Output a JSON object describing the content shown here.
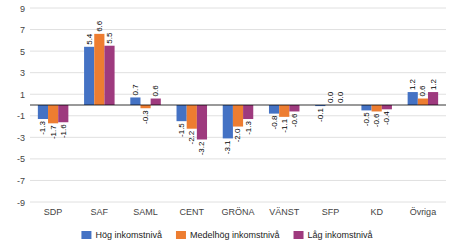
{
  "chart_data": {
    "type": "bar",
    "categories": [
      "SDP",
      "SAF",
      "SAML",
      "CENT",
      "GRÖNA",
      "VÄNST",
      "SFP",
      "KD",
      "Övriga"
    ],
    "series": [
      {
        "name": "Hög inkomstnivå",
        "color": "#4472c4",
        "values": [
          -1.3,
          5.4,
          0.7,
          -1.5,
          -3.1,
          -0.8,
          -0.1,
          -0.5,
          1.2
        ]
      },
      {
        "name": "Medelhög inkomstnivå",
        "color": "#ed7d31",
        "values": [
          -1.7,
          6.6,
          -0.3,
          -2.2,
          -2.0,
          -1.1,
          -0.0,
          -0.6,
          0.6
        ]
      },
      {
        "name": "Låg inkomstnivå",
        "color": "#9e3a7e",
        "values": [
          -1.6,
          5.5,
          0.6,
          -3.2,
          -1.3,
          -0.6,
          -0.0,
          -0.4,
          1.2
        ]
      }
    ],
    "ylim": [
      -9,
      9
    ],
    "yticks": [
      -9,
      -7,
      -5,
      -3,
      -1,
      1,
      3,
      5,
      7,
      9
    ],
    "grid": true,
    "legend": "bottom",
    "data_labels": true
  }
}
